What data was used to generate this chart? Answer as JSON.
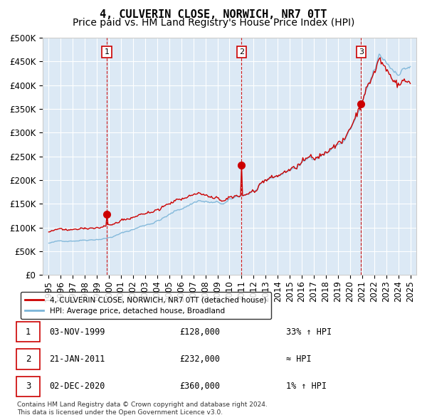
{
  "title": "4, CULVERIN CLOSE, NORWICH, NR7 0TT",
  "subtitle": "Price paid vs. HM Land Registry's House Price Index (HPI)",
  "legend_line1": "4, CULVERIN CLOSE, NORWICH, NR7 0TT (detached house)",
  "legend_line2": "HPI: Average price, detached house, Broadland",
  "footer1": "Contains HM Land Registry data © Crown copyright and database right 2024.",
  "footer2": "This data is licensed under the Open Government Licence v3.0.",
  "sale_dates": [
    "03-NOV-1999",
    "21-JAN-2011",
    "02-DEC-2020"
  ],
  "sale_prices": [
    128000,
    232000,
    360000
  ],
  "sale_labels": [
    "1",
    "2",
    "3"
  ],
  "sale_hpi_rel": [
    "33% ↑ HPI",
    "≈ HPI",
    "1% ↑ HPI"
  ],
  "ylim": [
    0,
    500000
  ],
  "yticks": [
    0,
    50000,
    100000,
    150000,
    200000,
    250000,
    300000,
    350000,
    400000,
    450000,
    500000
  ],
  "background_color": "#dce9f5",
  "grid_color": "#ffffff",
  "line_red": "#cc0000",
  "line_blue": "#7ab4d8",
  "marker_color": "#cc0000",
  "dashed_line_color": "#cc0000",
  "label_box_color": "#cc0000",
  "title_fontsize": 11,
  "subtitle_fontsize": 10,
  "tick_fontsize": 8.5
}
